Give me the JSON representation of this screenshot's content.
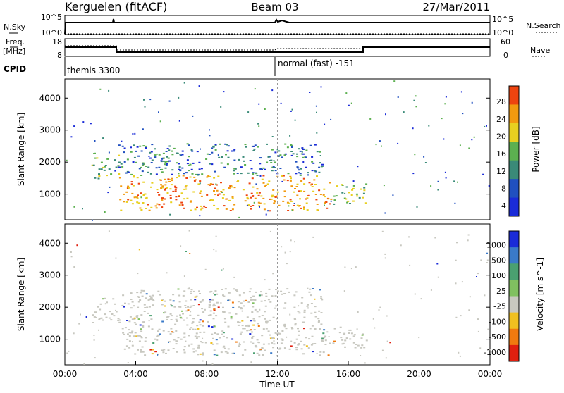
{
  "header": {
    "station": "Kerguelen (fitACF)",
    "beam": "Beam 03",
    "date": "27/Mar/2011"
  },
  "status_panels": {
    "nsky_label": "N.Sky",
    "nsearch_label": "N.Search",
    "freq_label": "Freq.",
    "freq_unit": "[MHz]",
    "nave_label": "Nave",
    "cpid_label": "CPID",
    "left_ticks_top": [
      "10^5",
      "10^0"
    ],
    "right_ticks_top": [
      "10^5",
      "10^0"
    ],
    "left_ticks_freq": [
      "18",
      "8"
    ],
    "right_ticks_nave": [
      "60",
      "0"
    ],
    "cpid_entries": [
      {
        "text": "themis 3300"
      },
      {
        "text": "normal (fast) -151"
      }
    ]
  },
  "chart_data": [
    {
      "type": "heatmap",
      "name": "power",
      "ylabel": "Slant Range [km]",
      "yticks": [
        1000,
        2000,
        3000,
        4000
      ],
      "ylim": [
        200,
        4600
      ],
      "colorbar": {
        "label": "Power [dB]",
        "ticks": [
          4,
          8,
          12,
          16,
          20,
          24,
          28
        ],
        "colors": [
          "#1a2bd8",
          "#2050c0",
          "#3a8a78",
          "#5cb050",
          "#e8d020",
          "#f29a10",
          "#ee4410"
        ]
      },
      "regions": [
        {
          "t0": 1.5,
          "t1": 3.0,
          "r0": 1500,
          "r1": 2300,
          "level": "med"
        },
        {
          "t0": 3.0,
          "t1": 15.0,
          "r0": 500,
          "r1": 1600,
          "level": "high"
        },
        {
          "t0": 3.0,
          "t1": 14.5,
          "r0": 1600,
          "r1": 2600,
          "level": "low"
        },
        {
          "t0": 15.0,
          "t1": 17.0,
          "r0": 700,
          "r1": 1400,
          "level": "med"
        }
      ]
    },
    {
      "type": "heatmap",
      "name": "velocity",
      "xlabel": "Time UT",
      "ylabel": "Slant Range [km]",
      "yticks": [
        1000,
        2000,
        3000,
        4000
      ],
      "ylim": [
        200,
        4600
      ],
      "xticks": [
        "00:00",
        "04:00",
        "08:00",
        "12:00",
        "16:00",
        "20:00",
        "00:00"
      ],
      "xlim": [
        0,
        24
      ],
      "colorbar": {
        "label": "Velocity [m s^-1]",
        "ticks": [
          1000,
          500,
          100,
          25,
          -25,
          -100,
          -500,
          -1000
        ],
        "colors": [
          "#1a2bd8",
          "#3a7ac8",
          "#4aa070",
          "#80c060",
          "#c8c8c0",
          "#f0c020",
          "#f07a10",
          "#e02010"
        ]
      },
      "dominant_value_color": "#c8c8c0"
    }
  ]
}
